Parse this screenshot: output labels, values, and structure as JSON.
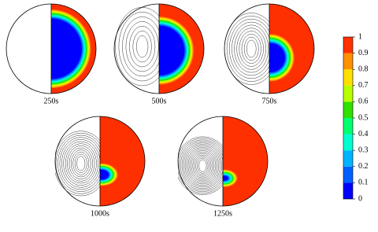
{
  "chart_data": {
    "type": "contour",
    "panels": [
      "250s",
      "500s",
      "750s",
      "1000s",
      "1250s"
    ],
    "colorbar": {
      "ylim": [
        0,
        1
      ],
      "yticks": [
        0,
        0.1,
        0.2,
        0.3,
        0.4,
        0.5,
        0.6,
        0.7,
        0.8,
        0.9,
        1
      ],
      "colors": [
        "#0000ff",
        "#0060ff",
        "#00b4ff",
        "#00ffd0",
        "#00ff70",
        "#30e000",
        "#b8ff00",
        "#ffe000",
        "#ff9000",
        "#ff3000"
      ]
    }
  }
}
